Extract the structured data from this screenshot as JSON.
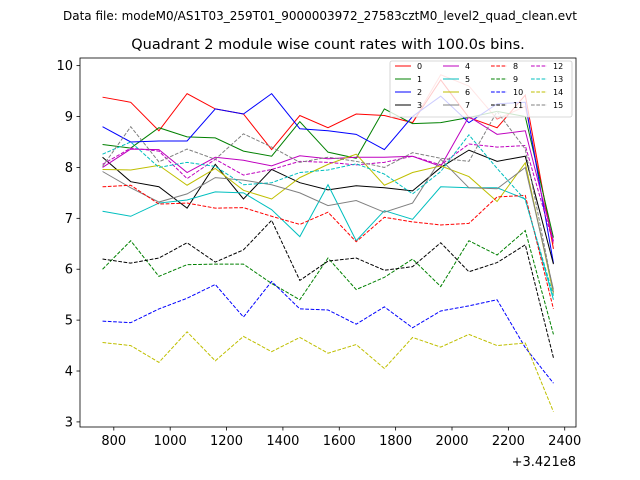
{
  "chart_data": {
    "type": "line",
    "suptitle": "Data file: modeM0/AS1T03_259T01_9000003972_27583cztM0_level2_quad_clean.evt",
    "title": "Quadrant 2 module wise count rates with 100.0s bins.",
    "xlabel": "",
    "ylabel": "",
    "x_offset_label": "+3.421e8",
    "xlim": [
      680,
      2440
    ],
    "ylim": [
      2.9,
      10.15
    ],
    "xticks": [
      800,
      1000,
      1200,
      1400,
      1600,
      1800,
      2000,
      2200,
      2400
    ],
    "xtick_labels": [
      "800",
      "1000",
      "1200",
      "1400",
      "1600",
      "1800",
      "2000",
      "2200",
      "2400"
    ],
    "yticks": [
      3,
      4,
      5,
      6,
      7,
      8,
      9,
      10
    ],
    "ytick_labels": [
      "3",
      "4",
      "5",
      "6",
      "7",
      "8",
      "9",
      "10"
    ],
    "grid": false,
    "legend_position": "top-right",
    "x": [
      760,
      860,
      960,
      1060,
      1160,
      1260,
      1360,
      1460,
      1560,
      1660,
      1760,
      1860,
      1960,
      2060,
      2160,
      2260,
      2360
    ],
    "series": [
      {
        "name": "0",
        "color": "#ff0000",
        "dash": "solid",
        "values": [
          9.38,
          9.28,
          8.72,
          9.45,
          9.15,
          9.05,
          8.35,
          9.02,
          8.78,
          9.05,
          9.02,
          8.88,
          9.72,
          8.98,
          8.78,
          9.42,
          6.4
        ]
      },
      {
        "name": "1",
        "color": "#008000",
        "dash": "solid",
        "values": [
          8.45,
          8.38,
          8.78,
          8.6,
          8.58,
          8.32,
          8.22,
          8.9,
          8.3,
          8.18,
          9.15,
          8.86,
          8.88,
          8.98,
          9.1,
          9.0,
          6.62
        ]
      },
      {
        "name": "2",
        "color": "#0000ff",
        "dash": "solid",
        "values": [
          8.8,
          8.5,
          8.52,
          8.52,
          9.15,
          9.05,
          9.45,
          8.76,
          8.72,
          8.65,
          8.35,
          9.0,
          9.4,
          8.88,
          9.25,
          9.28,
          6.12
        ]
      },
      {
        "name": "3",
        "color": "#000000",
        "dash": "solid",
        "values": [
          8.2,
          7.72,
          7.62,
          7.2,
          8.06,
          7.38,
          7.96,
          7.7,
          7.56,
          7.64,
          7.6,
          7.54,
          8.0,
          8.34,
          8.12,
          8.22,
          6.1
        ]
      },
      {
        "name": "4",
        "color": "#bf00bf",
        "dash": "solid",
        "values": [
          8.0,
          8.36,
          8.35,
          7.9,
          8.2,
          8.14,
          8.03,
          8.23,
          8.17,
          8.2,
          8.2,
          8.22,
          8.02,
          9.0,
          8.65,
          8.72,
          6.55
        ]
      },
      {
        "name": "5",
        "color": "#00bfbf",
        "dash": "solid",
        "values": [
          7.14,
          7.04,
          7.3,
          7.36,
          7.52,
          7.5,
          7.17,
          6.64,
          7.66,
          6.56,
          7.15,
          6.98,
          7.62,
          7.6,
          7.6,
          7.38,
          5.4
        ]
      },
      {
        "name": "6",
        "color": "#bfbf00",
        "dash": "solid",
        "values": [
          7.96,
          7.95,
          8.04,
          7.65,
          7.98,
          7.55,
          7.38,
          7.8,
          8.06,
          8.26,
          7.65,
          7.9,
          8.03,
          7.82,
          7.33,
          8.09,
          5.52
        ]
      },
      {
        "name": "7",
        "color": "#808080",
        "dash": "solid",
        "values": [
          7.92,
          7.6,
          7.32,
          7.48,
          7.8,
          7.75,
          7.66,
          7.5,
          7.25,
          7.35,
          7.12,
          7.3,
          8.16,
          7.6,
          7.58,
          8.0,
          5.6
        ]
      },
      {
        "name": "8",
        "color": "#ff0000",
        "dash": "dashed",
        "values": [
          7.62,
          7.65,
          7.28,
          7.3,
          7.2,
          7.21,
          7.04,
          6.88,
          7.12,
          6.54,
          7.02,
          6.93,
          6.87,
          6.9,
          7.42,
          7.45,
          5.22
        ]
      },
      {
        "name": "9",
        "color": "#008000",
        "dash": "dashed",
        "values": [
          6.0,
          6.56,
          5.86,
          6.09,
          6.1,
          6.1,
          5.72,
          5.4,
          6.22,
          5.6,
          5.84,
          6.2,
          5.66,
          6.56,
          6.28,
          6.76,
          4.72
        ]
      },
      {
        "name": "10",
        "color": "#0000ff",
        "dash": "dashed",
        "values": [
          4.98,
          4.95,
          5.22,
          5.43,
          5.7,
          5.06,
          5.76,
          5.22,
          5.2,
          4.92,
          5.26,
          4.85,
          5.18,
          5.28,
          5.4,
          4.46,
          3.76
        ]
      },
      {
        "name": "11",
        "color": "#000000",
        "dash": "dashed",
        "values": [
          6.2,
          6.12,
          6.22,
          6.52,
          6.14,
          6.38,
          6.96,
          5.78,
          6.16,
          6.22,
          5.98,
          6.05,
          6.52,
          5.95,
          6.13,
          6.48,
          4.26
        ]
      },
      {
        "name": "12",
        "color": "#bf00bf",
        "dash": "dashed",
        "values": [
          8.06,
          8.38,
          8.32,
          7.78,
          8.16,
          7.85,
          7.96,
          8.12,
          8.1,
          8.05,
          8.1,
          8.22,
          8.05,
          8.46,
          8.4,
          8.43,
          6.5
        ]
      },
      {
        "name": "13",
        "color": "#00bfbf",
        "dash": "dashed",
        "values": [
          8.26,
          8.5,
          8.0,
          8.1,
          8.02,
          7.66,
          7.7,
          7.9,
          7.95,
          8.07,
          7.87,
          7.48,
          7.92,
          8.64,
          7.98,
          7.36,
          5.48
        ]
      },
      {
        "name": "14",
        "color": "#bfbf00",
        "dash": "dashed",
        "values": [
          4.56,
          4.5,
          4.17,
          4.77,
          4.2,
          4.68,
          4.38,
          4.66,
          4.35,
          4.52,
          4.05,
          4.66,
          4.47,
          4.72,
          4.5,
          4.55,
          3.2
        ]
      },
      {
        "name": "15",
        "color": "#808080",
        "dash": "dashed",
        "values": [
          8.02,
          8.8,
          8.11,
          8.36,
          8.16,
          8.66,
          8.4,
          8.1,
          8.2,
          8.12,
          8.0,
          8.29,
          8.18,
          8.12,
          9.1,
          8.36,
          5.55
        ]
      }
    ],
    "trailing_artifact": {
      "color": "#ff8080",
      "x": [
        1860,
        1960,
        2060,
        2160,
        2260,
        2360
      ],
      "values": [
        8.88,
        9.82,
        9.6,
        8.95,
        9.2,
        6.5
      ]
    }
  }
}
